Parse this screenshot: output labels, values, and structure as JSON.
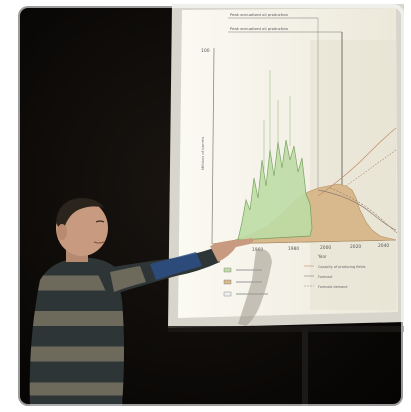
{
  "photo": {
    "chart": {
      "annotations": [
        "Peak annualised oil production",
        "Peak annualised oil production"
      ],
      "y_tick_top": "100",
      "x_ticks": [
        "1960",
        "1980",
        "2000",
        "2020",
        "2040"
      ],
      "x_label": "Year",
      "y_label": "Millions of barrels",
      "legend_left": [],
      "legend_right": [
        "Capacity of producing fields",
        "Forecast",
        "Forecast demand"
      ]
    },
    "colors": {
      "backdrop": "#0f0c09",
      "screen": "#f6f4ea",
      "sweater_dark": "#2e3537",
      "sweater_light": "#6d6a5c",
      "sleeve_blue": "#2c4f86",
      "skin": "#c89a80",
      "tan_fill": "#d8b98e",
      "green_fill": "#bedda6"
    }
  }
}
